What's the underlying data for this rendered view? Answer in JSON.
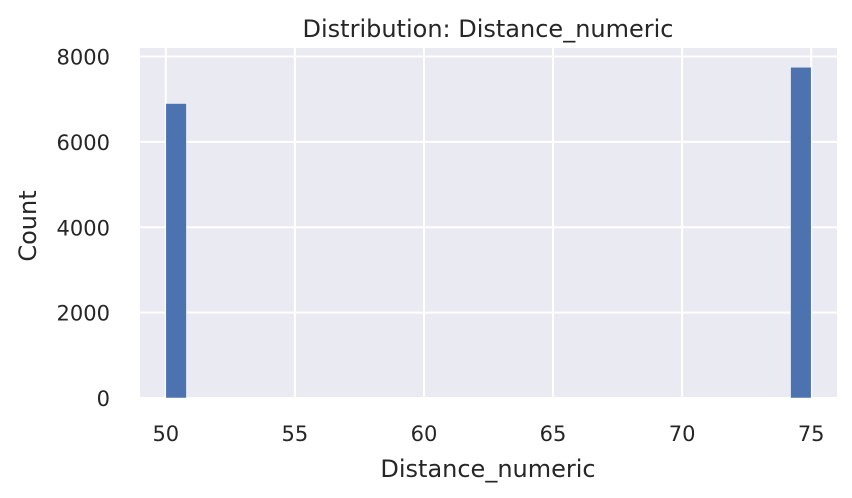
{
  "chart_data": {
    "type": "bar",
    "title": "Distribution: Distance_numeric",
    "xlabel": "Distance_numeric",
    "ylabel": "Count",
    "xlim": [
      49,
      76
    ],
    "ylim": [
      0,
      8200
    ],
    "xticks": [
      50,
      55,
      60,
      65,
      70,
      75
    ],
    "yticks": [
      0,
      2000,
      4000,
      6000,
      8000
    ],
    "grid": true,
    "bins": [
      {
        "x_start": 50.0,
        "x_end": 50.8,
        "count": 6900
      },
      {
        "x_start": 74.2,
        "x_end": 75.0,
        "count": 7750
      }
    ]
  },
  "colors": {
    "plot_background": "#eaeaf2",
    "grid": "#ffffff",
    "bar": "#4c72b0",
    "text": "#262626"
  }
}
